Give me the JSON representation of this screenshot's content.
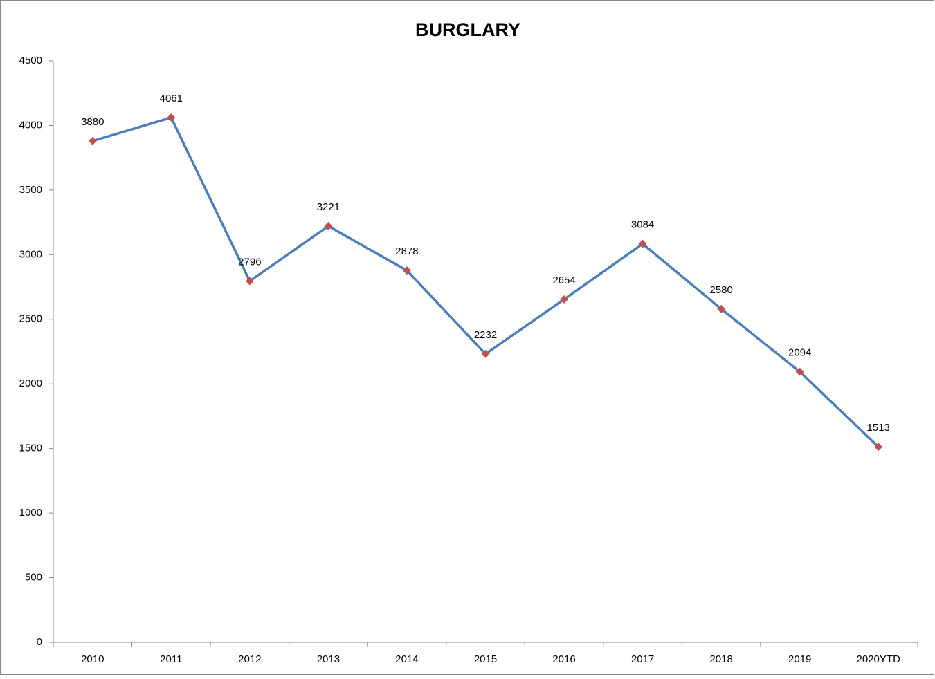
{
  "chart_data": {
    "type": "line",
    "title": "BURGLARY",
    "categories": [
      "2010",
      "2011",
      "2012",
      "2013",
      "2014",
      "2015",
      "2016",
      "2017",
      "2018",
      "2019",
      "2020YTD"
    ],
    "series": [
      {
        "name": "BURGLARY",
        "color": "#4a7ebb",
        "marker_color": "#c0504d",
        "values": [
          3880,
          4061,
          2796,
          3221,
          2878,
          2232,
          2654,
          3084,
          2580,
          2094,
          1513
        ]
      }
    ],
    "ylim": [
      0,
      4500
    ],
    "yticks": [
      0,
      500,
      1000,
      1500,
      2000,
      2500,
      3000,
      3500,
      4000,
      4500
    ],
    "grid": false
  }
}
